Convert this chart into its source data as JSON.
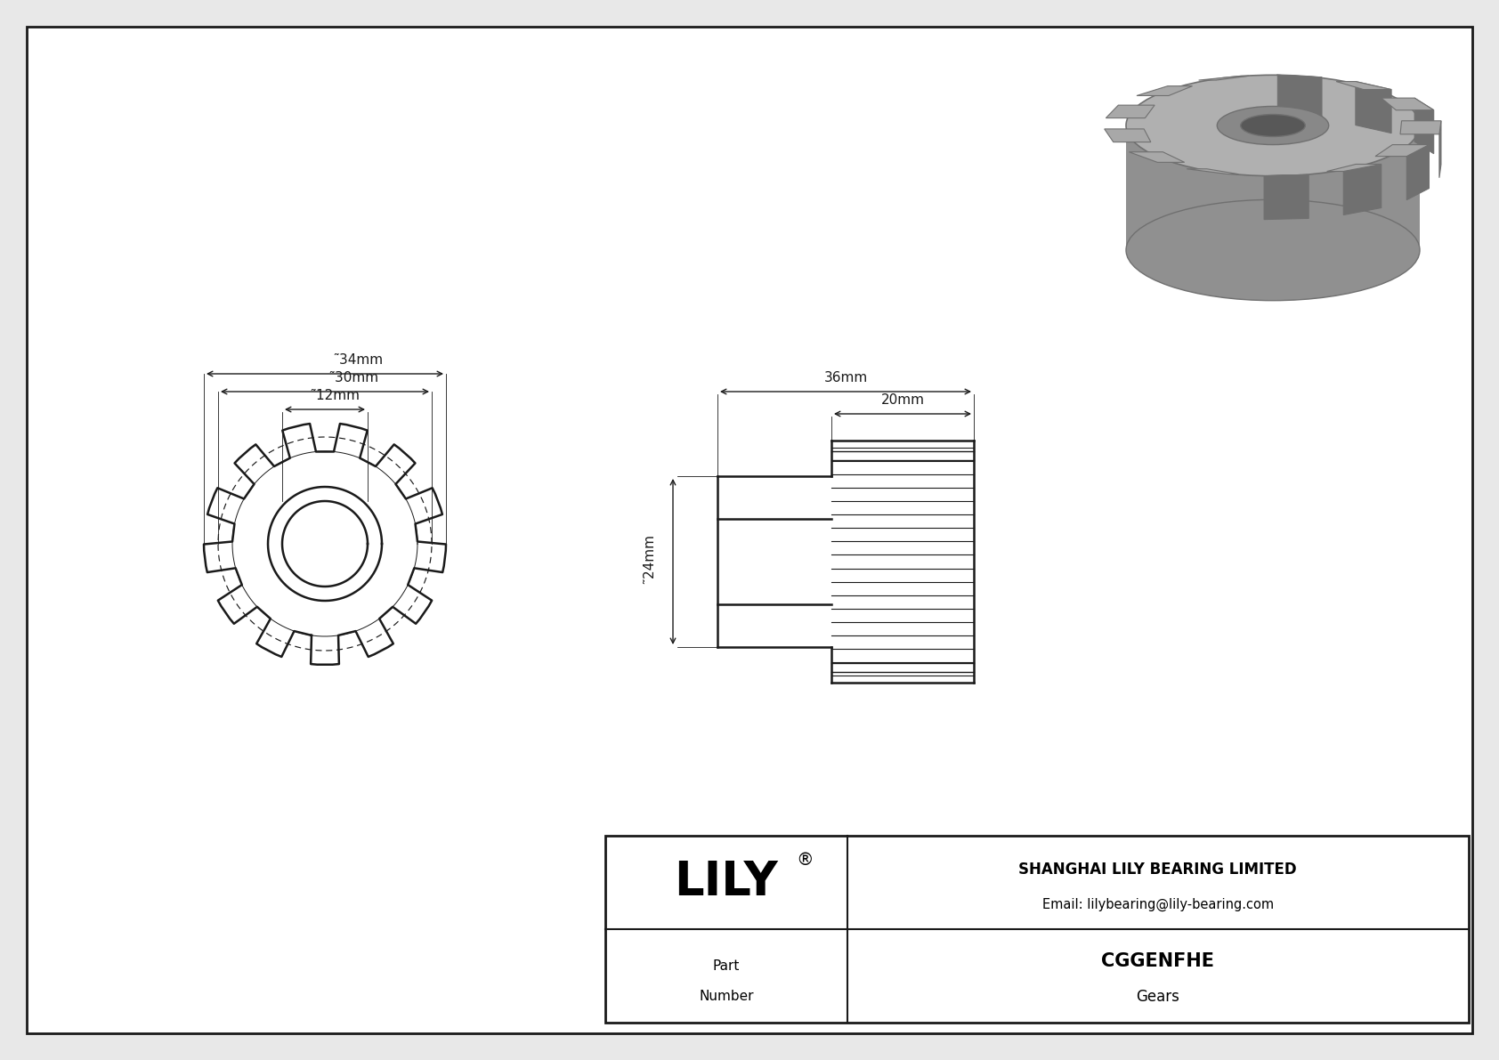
{
  "bg_color": "#e8e8e8",
  "drawing_bg": "#ffffff",
  "line_color": "#1a1a1a",
  "num_teeth": 13,
  "dim_34": "͂34mm",
  "dim_30": "͂30mm",
  "dim_12": "͂12mm",
  "dim_36": "36mm",
  "dim_20": "20mm",
  "dim_24": "͂24mm",
  "company": "SHANGHAI LILY BEARING LIMITED",
  "email": "Email: lilybearing@lily-bearing.com",
  "part_number": "CGGENFHE",
  "category": "Gears",
  "part_label_line1": "Part",
  "part_label_line2": "Number"
}
